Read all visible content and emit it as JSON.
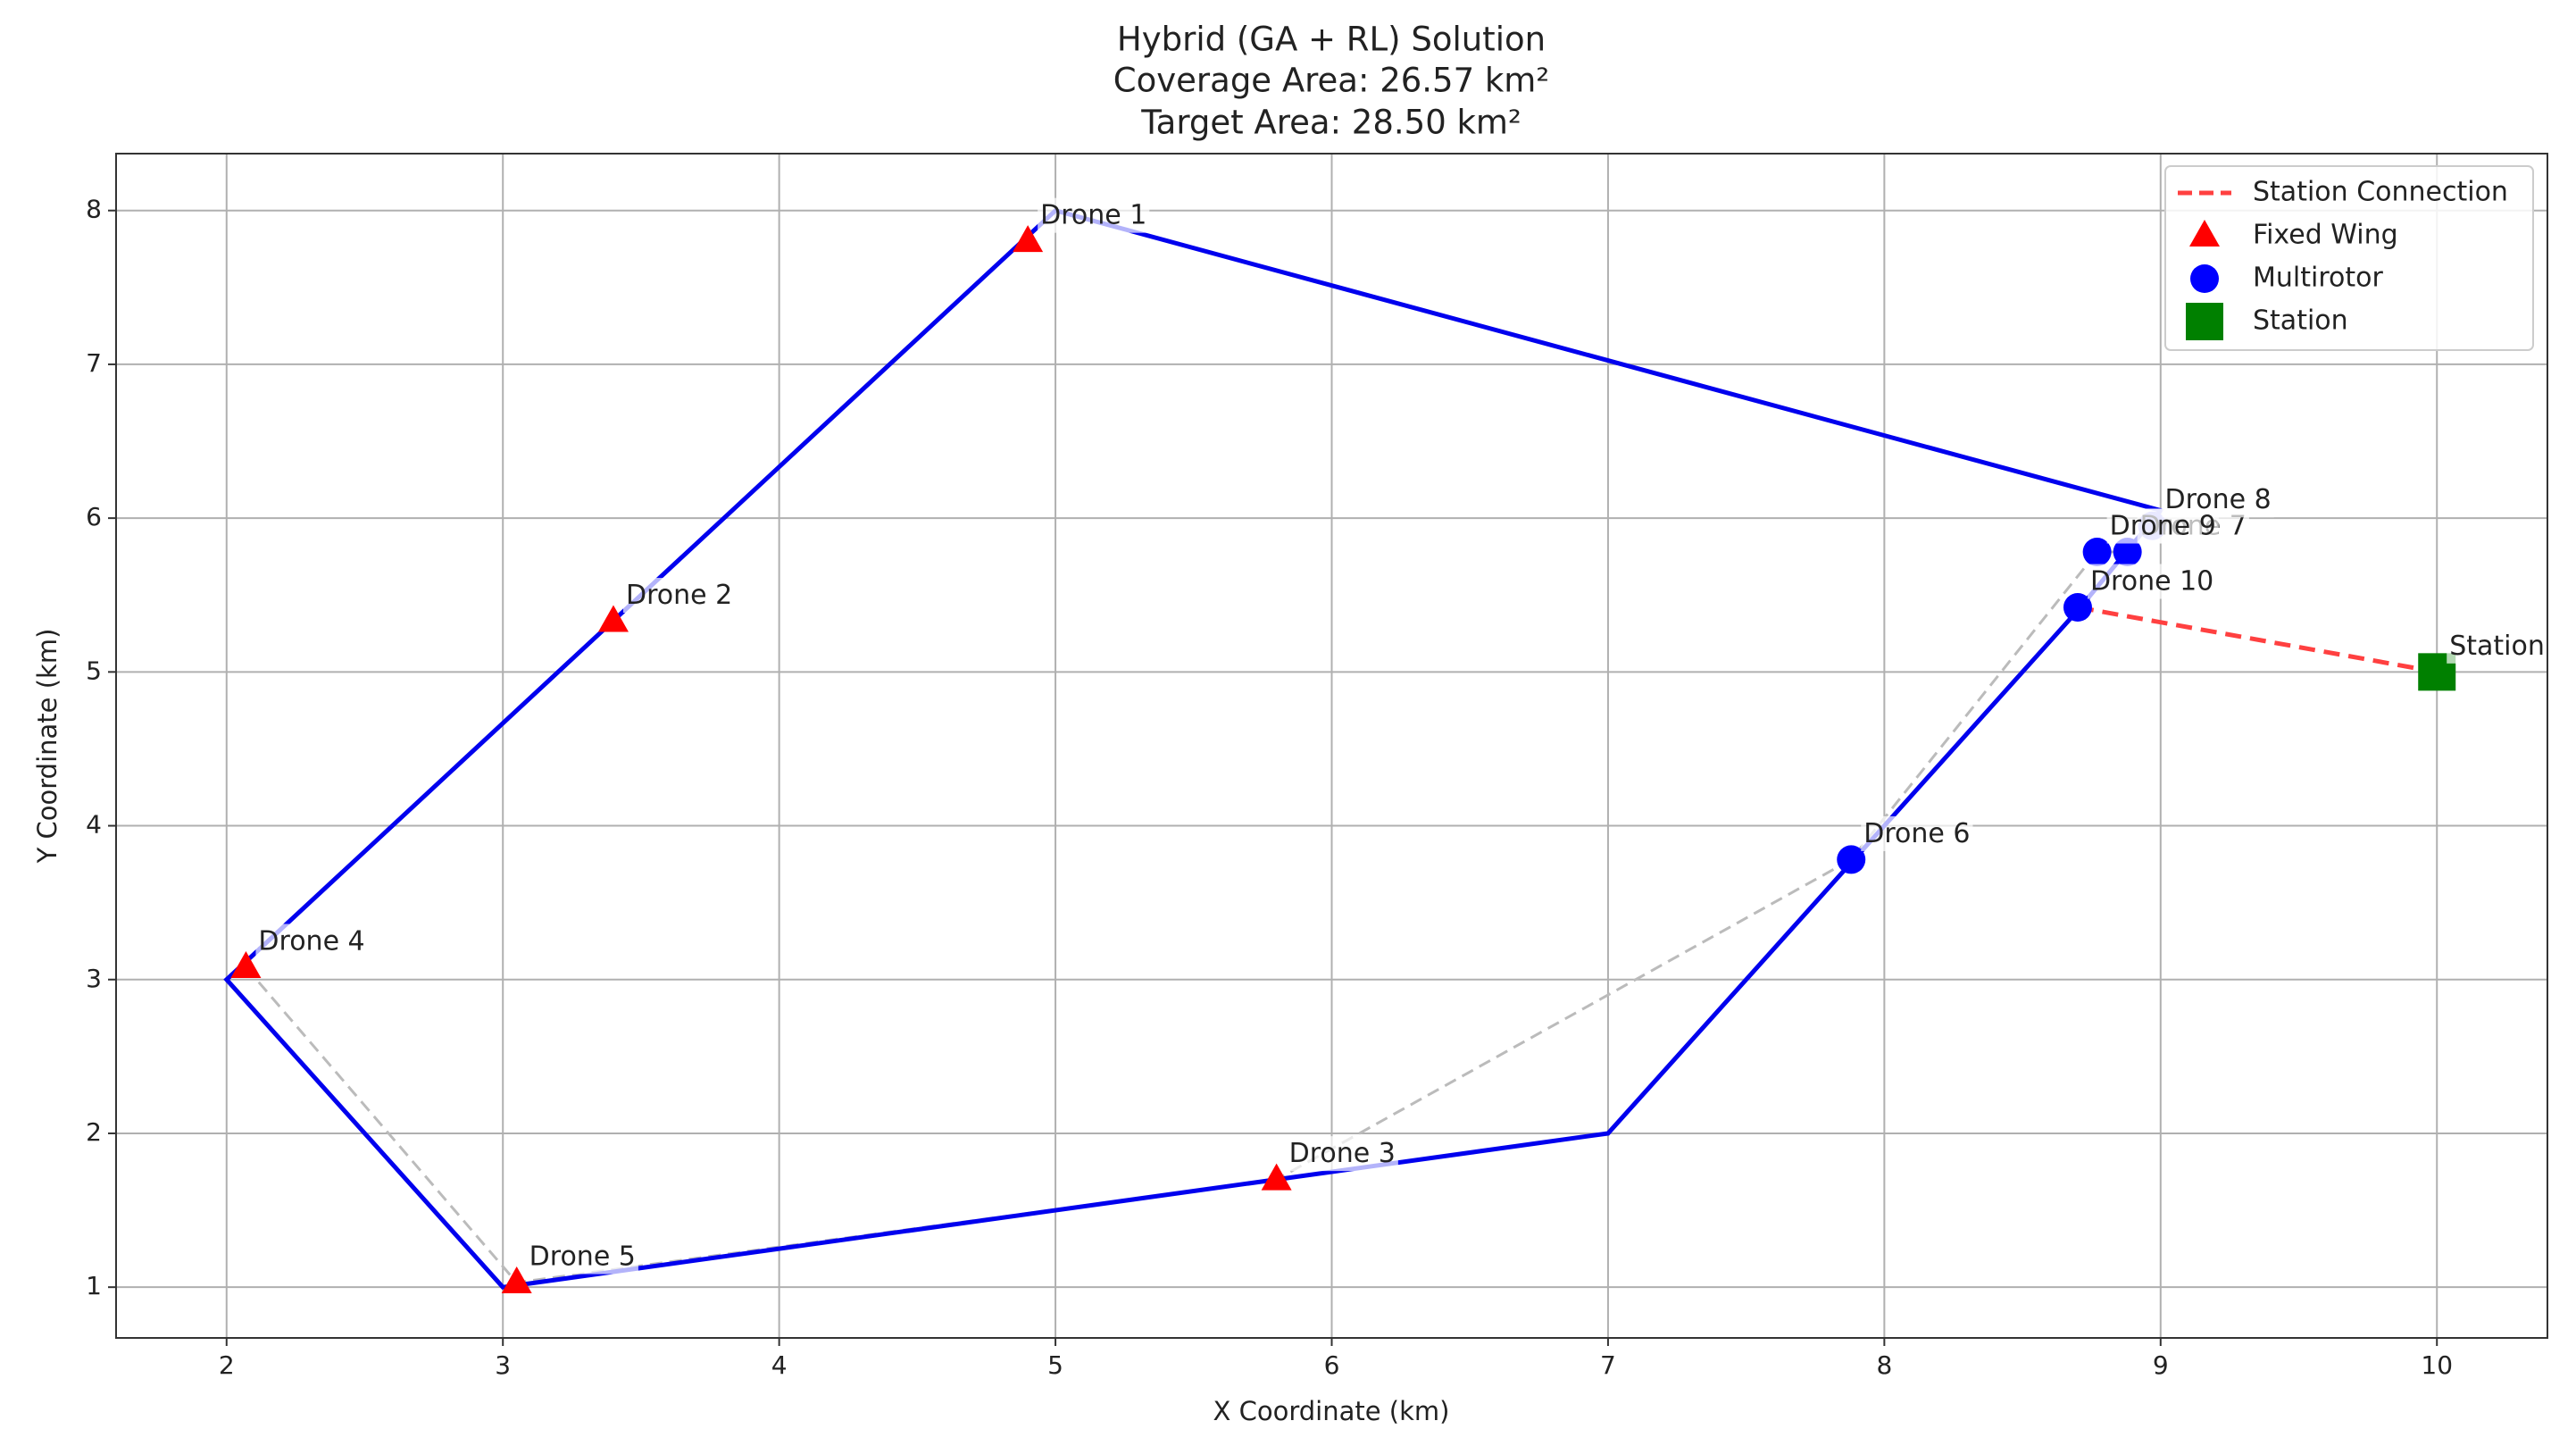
{
  "chart_data": {
    "type": "scatter",
    "title": "Hybrid (GA + RL) Solution",
    "subtitle": [
      "Coverage Area: 26.57 km²",
      "Target Area: 28.50 km²"
    ],
    "x_label": "X Coordinate (km)",
    "y_label": "Y Coordinate (km)",
    "xlim": [
      1.6,
      10.4
    ],
    "ylim": [
      0.67,
      8.37
    ],
    "xticks": [
      2,
      3,
      4,
      5,
      6,
      7,
      8,
      9,
      10
    ],
    "yticks": [
      1,
      2,
      3,
      4,
      5,
      6,
      7,
      8
    ],
    "grid": true,
    "legend": "upper right",
    "boundary": {
      "color": "#0000ee",
      "closed": true,
      "x": [
        2,
        5,
        9,
        8.7,
        7,
        3
      ],
      "y": [
        3,
        8,
        6.05,
        5.4,
        2,
        1
      ]
    },
    "route": {
      "color": "#bbbbbb",
      "x": [
        2.07,
        3.05,
        5.8,
        7.88,
        8.77,
        8.88
      ],
      "y": [
        3.08,
        1.03,
        1.7,
        3.78,
        5.78,
        5.78
      ]
    },
    "series": [
      {
        "name": "Station Connection",
        "color": "#ff4040",
        "marker": "dashed-line",
        "x": [
          8.7,
          10
        ],
        "y": [
          5.42,
          5
        ]
      },
      {
        "name": "Fixed Wing",
        "color": "#ff0000",
        "marker": "triangle",
        "x": [
          4.9,
          3.4,
          5.8,
          2.07,
          3.05
        ],
        "y": [
          7.8,
          5.33,
          1.7,
          3.08,
          1.03
        ],
        "point_labels": [
          "Drone 1",
          "Drone 2",
          "Drone 3",
          "Drone 4",
          "Drone 5"
        ]
      },
      {
        "name": "Multirotor",
        "color": "#0000ff",
        "marker": "circle",
        "x": [
          7.88,
          8.88,
          8.97,
          8.77,
          8.7
        ],
        "y": [
          3.78,
          5.78,
          5.95,
          5.78,
          5.42
        ],
        "point_labels": [
          "Drone 6",
          "Drone 7",
          "Drone 8",
          "Drone 9",
          "Drone 10"
        ]
      },
      {
        "name": "Station",
        "color": "#008000",
        "marker": "square",
        "x": [
          10
        ],
        "y": [
          5
        ],
        "point_labels": [
          "Station"
        ]
      }
    ]
  }
}
